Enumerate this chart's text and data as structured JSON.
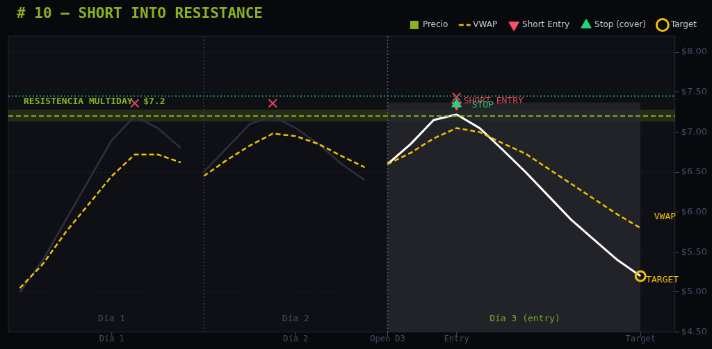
{
  "chart_data": {
    "type": "line",
    "title": "# 10 — SHORT INTO RESISTANCE",
    "categories": [
      null,
      null,
      null,
      null,
      "Día 1",
      null,
      null,
      null,
      null,
      null,
      null,
      null,
      "Día 2",
      null,
      null,
      null,
      "Open D3",
      null,
      null,
      "Entry",
      null,
      null,
      null,
      null,
      null,
      null,
      null,
      "Target",
      null
    ],
    "ylim": [
      4.5,
      8.2
    ],
    "yticks": [
      {
        "value": 4.5,
        "label": "$4.50"
      },
      {
        "value": 5,
        "label": "$5.00"
      },
      {
        "value": 5.5,
        "label": "$5.50"
      },
      {
        "value": 6,
        "label": "$6.00"
      },
      {
        "value": 6.5,
        "label": "$6.50"
      },
      {
        "value": 7,
        "label": "$7.00"
      },
      {
        "value": 7.5,
        "label": "$7.50"
      },
      {
        "value": 8,
        "label": "$8.00"
      }
    ],
    "grid": "y",
    "legend": "top right",
    "marker": "none",
    "series": [
      {
        "type": "area",
        "color": "#26272c",
        "values": [
          null,
          null,
          null,
          null,
          null,
          null,
          null,
          null,
          null,
          null,
          null,
          null,
          null,
          null,
          null,
          null,
          7.37,
          7.37,
          7.37,
          7.37,
          7.37,
          7.37,
          7.37,
          7.37,
          7.37,
          7.37,
          7.37,
          7.37,
          null
        ]
      },
      {
        "type": "line",
        "color": "#2e3040",
        "values": [
          5.0,
          5.4,
          5.9,
          6.4,
          6.9,
          7.2,
          7.05,
          6.8,
          null,
          null,
          null,
          null,
          null,
          null,
          null,
          null,
          null,
          null,
          null,
          null,
          null,
          null,
          null,
          null,
          null,
          null,
          null,
          null,
          null
        ]
      },
      {
        "type": "line",
        "color": "#2e3040",
        "values": [
          null,
          null,
          null,
          null,
          null,
          null,
          null,
          null,
          6.5,
          6.8,
          7.1,
          7.2,
          7.05,
          6.85,
          6.6,
          6.4,
          null,
          null,
          null,
          null,
          null,
          null,
          null,
          null,
          null,
          null,
          null,
          null,
          null
        ]
      },
      {
        "type": "line",
        "color": "#ffffff",
        "values": [
          null,
          null,
          null,
          null,
          null,
          null,
          null,
          null,
          null,
          null,
          null,
          null,
          null,
          null,
          null,
          null,
          6.6,
          6.85,
          7.15,
          7.22,
          7.05,
          6.78,
          6.5,
          6.2,
          5.9,
          5.65,
          5.4,
          5.2,
          null
        ]
      },
      {
        "type": "line",
        "name": "VWAP",
        "color": "#f2c200",
        "line_style": "dashed",
        "values": [
          5.05,
          5.35,
          5.75,
          6.1,
          6.45,
          6.72,
          6.72,
          6.62,
          null,
          null,
          null,
          null,
          null,
          null,
          null,
          null,
          null,
          null,
          null,
          null,
          null,
          null,
          null,
          null,
          null,
          null,
          null,
          null,
          null
        ]
      },
      {
        "type": "line",
        "color": "#f2c200",
        "line_style": "dashed",
        "values": [
          null,
          null,
          null,
          null,
          null,
          null,
          null,
          null,
          6.45,
          6.65,
          6.83,
          6.98,
          6.95,
          6.85,
          6.7,
          6.56,
          null,
          null,
          null,
          null,
          null,
          null,
          null,
          null,
          null,
          null,
          null,
          null,
          null
        ]
      },
      {
        "type": "line",
        "color": "#f2c200",
        "line_style": "dashed",
        "values": [
          null,
          null,
          null,
          null,
          null,
          null,
          null,
          null,
          null,
          null,
          null,
          null,
          null,
          null,
          null,
          null,
          6.6,
          6.74,
          6.92,
          7.05,
          7.0,
          6.86,
          6.73,
          6.54,
          6.35,
          6.16,
          5.97,
          5.8,
          null
        ]
      },
      {
        "type": "scatter",
        "marker": "cross",
        "color": "#e0435a",
        "values": [
          null,
          null,
          null,
          null,
          null,
          7.36,
          null,
          null,
          null,
          null,
          null,
          7.36,
          null,
          null,
          null,
          null,
          null,
          null,
          null,
          7.44,
          null,
          null,
          null,
          null,
          null,
          null,
          null,
          null,
          null
        ]
      },
      {
        "type": "scatter",
        "name": "Short Entry",
        "marker": "triangle",
        "color": "#ff4d6a",
        "values": [
          null,
          null,
          null,
          null,
          null,
          null,
          null,
          null,
          null,
          null,
          null,
          null,
          null,
          null,
          null,
          null,
          null,
          null,
          null,
          7.34,
          null,
          null,
          null,
          null,
          null,
          null,
          null,
          null,
          null
        ]
      },
      {
        "type": "scatter",
        "name": "Stop (cover)",
        "marker": "triangle",
        "color": "#22d47a",
        "values": [
          null,
          null,
          null,
          null,
          null,
          null,
          null,
          null,
          null,
          null,
          null,
          null,
          null,
          null,
          null,
          null,
          null,
          null,
          null,
          7.35,
          null,
          null,
          null,
          null,
          null,
          null,
          null,
          null,
          null
        ]
      },
      {
        "type": "scatter",
        "name": "Target",
        "marker": "circle",
        "color": "#f2c200",
        "values": [
          null,
          null,
          null,
          null,
          null,
          null,
          null,
          null,
          null,
          null,
          null,
          null,
          null,
          null,
          null,
          null,
          null,
          null,
          null,
          null,
          null,
          null,
          null,
          null,
          null,
          null,
          null,
          5.2,
          null
        ]
      }
    ],
    "ref_lines": [
      {
        "axis": "y",
        "value": 7.2,
        "label": "RESISTENCIA MULTIDAY  $7.2",
        "color": "#8ab21f",
        "line_style": "dashed"
      },
      {
        "axis": "y",
        "value": 7.45,
        "color": "#1f9e5a",
        "line_style": "dotted"
      },
      {
        "axis": "x",
        "value": "Open D3",
        "color": "#5c606e",
        "line_style": "dotted"
      }
    ],
    "bands": [
      {
        "axis": "y",
        "from": 7.13,
        "to": 7.28,
        "label": "Precio",
        "color": "#8ab21f"
      }
    ],
    "annotations": [
      "Día 1",
      "Día 2",
      "Día 3 (entry)",
      {
        "text": "SHORT ENTRY",
        "x": "Entry",
        "y": 7.34
      },
      {
        "text": "STOP",
        "x": "Entry",
        "y": 7.35
      },
      "VWAP",
      {
        "text": "TARGET",
        "x": "Target",
        "y": 5.2
      }
    ]
  }
}
